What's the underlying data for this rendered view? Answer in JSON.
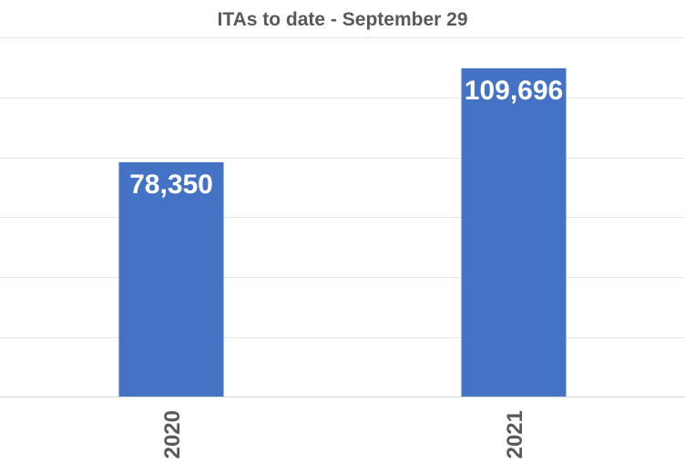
{
  "chart_data": {
    "type": "bar",
    "title": "ITAs to date - September 29",
    "categories": [
      "2020",
      "2021"
    ],
    "values": [
      78350,
      109696
    ],
    "data_labels": [
      "78,350",
      "109,696"
    ],
    "xlabel": "",
    "ylabel": "",
    "ylim": [
      0,
      120000
    ],
    "grid": true,
    "legend": "none",
    "bar_color": "#4472c4",
    "label_color": "#ffffff",
    "text_color": "#595959",
    "grid_color": "#e6e6e6"
  }
}
